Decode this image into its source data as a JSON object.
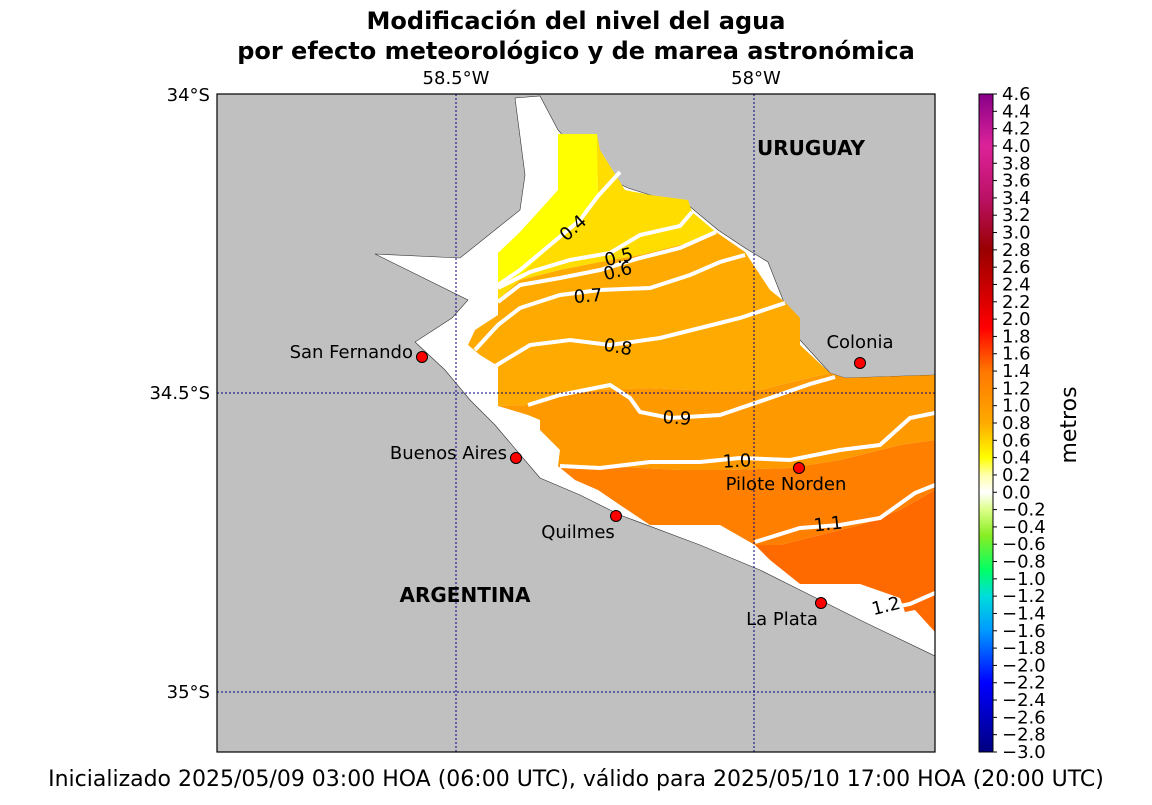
{
  "title": {
    "line1": "Modificación del nivel del agua",
    "line2": "por efecto meteorológico y de marea astronómica"
  },
  "map": {
    "lon_ticks": [
      "58.5°W",
      "58°W"
    ],
    "lat_ticks": [
      "34°S",
      "34.5°S",
      "35°S"
    ],
    "countries": [
      "URUGUAY",
      "ARGENTINA"
    ],
    "stations": [
      "San Fernando",
      "Colonia",
      "Buenos Aires",
      "Pilote Norden",
      "Quilmes",
      "La Plata"
    ],
    "contours": [
      {
        "level": 0.4,
        "label": "0.4"
      },
      {
        "level": 0.5,
        "label": "0.5"
      },
      {
        "level": 0.6,
        "label": "0.6"
      },
      {
        "level": 0.7,
        "label": "0.7"
      },
      {
        "level": 0.8,
        "label": "0.8"
      },
      {
        "level": 0.9,
        "label": "0.9"
      },
      {
        "level": 1.0,
        "label": "1.0"
      },
      {
        "level": 1.1,
        "label": "1.1"
      },
      {
        "level": 1.2,
        "label": "1.2"
      }
    ],
    "colors": {
      "land": "#c0c0c0",
      "water": "#ffffff",
      "band_03_04": "#ffff00",
      "band_04_06": "#ffdd00",
      "band_06_08": "#ffaa00",
      "band_08_10": "#ff9900",
      "band_10_12": "#ff7f00",
      "band_12_14": "#ff6a00",
      "station": "#ff0000",
      "grid": "#000080",
      "contour_line": "#ffffff"
    }
  },
  "colorbar": {
    "label": "metros",
    "ticks": [
      "4.6",
      "4.4",
      "4.2",
      "4.0",
      "3.8",
      "3.6",
      "3.4",
      "3.2",
      "3.0",
      "2.8",
      "2.6",
      "2.4",
      "2.2",
      "2.0",
      "1.8",
      "1.6",
      "1.4",
      "1.2",
      "1.0",
      "0.8",
      "0.6",
      "0.4",
      "0.2",
      "0.0",
      "−0.2",
      "−0.4",
      "−0.6",
      "−0.8",
      "−1.0",
      "−1.2",
      "−1.4",
      "−1.6",
      "−1.8",
      "−2.0",
      "−2.2",
      "−2.4",
      "−2.6",
      "−2.8",
      "−3.0"
    ],
    "min": -3.0,
    "max": 4.6,
    "colors": [
      {
        "v": -3.0,
        "c": "#00007f"
      },
      {
        "v": -2.2,
        "c": "#0000ff"
      },
      {
        "v": -1.6,
        "c": "#0099ff"
      },
      {
        "v": -1.2,
        "c": "#00dddd"
      },
      {
        "v": -0.9,
        "c": "#00ff66"
      },
      {
        "v": -0.5,
        "c": "#88ee22"
      },
      {
        "v": -0.2,
        "c": "#ddff88"
      },
      {
        "v": 0.0,
        "c": "#ffffff"
      },
      {
        "v": 0.2,
        "c": "#ffffaa"
      },
      {
        "v": 0.4,
        "c": "#ffff00"
      },
      {
        "v": 0.8,
        "c": "#ffaa00"
      },
      {
        "v": 1.4,
        "c": "#ff7700"
      },
      {
        "v": 1.9,
        "c": "#ff0000"
      },
      {
        "v": 2.8,
        "c": "#990000"
      },
      {
        "v": 3.4,
        "c": "#bb1166"
      },
      {
        "v": 4.0,
        "c": "#dd2299"
      },
      {
        "v": 4.6,
        "c": "#880088"
      }
    ]
  },
  "footer": "Inicializado 2025/05/09 03:00 HOA (06:00 UTC), válido para 2025/05/10 17:00 HOA (20:00 UTC)"
}
